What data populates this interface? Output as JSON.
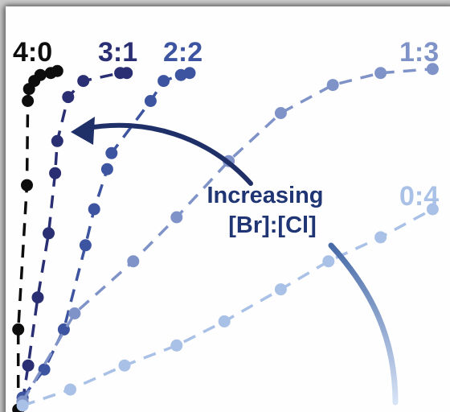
{
  "chart_data": {
    "type": "scatter",
    "title": "",
    "xlabel": "",
    "ylabel": "",
    "grid": false,
    "legend": "labels at line ends",
    "xlim": [
      0,
      100
    ],
    "ylim": [
      0,
      100
    ],
    "series": [
      {
        "name": "4:0",
        "color": "#0d0d0d",
        "points": [
          {
            "x": 0.5,
            "y": 0
          },
          {
            "x": 0.5,
            "y": 20
          },
          {
            "x": 2.5,
            "y": 56
          },
          {
            "x": 2.7,
            "y": 77
          },
          {
            "x": 3,
            "y": 80
          },
          {
            "x": 4.2,
            "y": 82
          },
          {
            "x": 5.6,
            "y": 83.5
          },
          {
            "x": 8,
            "y": 84
          },
          {
            "x": 9.5,
            "y": 84.5
          }
        ]
      },
      {
        "name": "3:1",
        "color": "#2a2e73",
        "points": [
          {
            "x": 1.5,
            "y": 2
          },
          {
            "x": 2.8,
            "y": 11
          },
          {
            "x": 5,
            "y": 28
          },
          {
            "x": 7.5,
            "y": 44
          },
          {
            "x": 9,
            "y": 59
          },
          {
            "x": 9.5,
            "y": 67
          },
          {
            "x": 12,
            "y": 78
          },
          {
            "x": 15.5,
            "y": 82
          },
          {
            "x": 24,
            "y": 84
          },
          {
            "x": 25.5,
            "y": 84
          }
        ]
      },
      {
        "name": "2:2",
        "color": "#3d54a0",
        "points": [
          {
            "x": 1.5,
            "y": 3
          },
          {
            "x": 6.5,
            "y": 10
          },
          {
            "x": 11,
            "y": 20
          },
          {
            "x": 16,
            "y": 41
          },
          {
            "x": 18,
            "y": 50
          },
          {
            "x": 21,
            "y": 60
          },
          {
            "x": 22,
            "y": 64
          },
          {
            "x": 31,
            "y": 77
          },
          {
            "x": 34,
            "y": 82
          },
          {
            "x": 38,
            "y": 83.5
          },
          {
            "x": 40,
            "y": 84
          }
        ]
      },
      {
        "name": "1:3",
        "color": "#7f93c8",
        "points": [
          {
            "x": 1.5,
            "y": 2
          },
          {
            "x": 13.5,
            "y": 24
          },
          {
            "x": 27,
            "y": 37
          },
          {
            "x": 37,
            "y": 48
          },
          {
            "x": 49,
            "y": 62
          },
          {
            "x": 61,
            "y": 74
          },
          {
            "x": 73,
            "y": 81
          },
          {
            "x": 84,
            "y": 84
          },
          {
            "x": 96,
            "y": 85
          }
        ]
      },
      {
        "name": "0:4",
        "color": "#a9c1e6",
        "points": [
          {
            "x": 1.5,
            "y": 1
          },
          {
            "x": 12.5,
            "y": 5
          },
          {
            "x": 25,
            "y": 11
          },
          {
            "x": 37,
            "y": 16
          },
          {
            "x": 48,
            "y": 22
          },
          {
            "x": 61,
            "y": 30
          },
          {
            "x": 72,
            "y": 37
          },
          {
            "x": 84,
            "y": 43
          },
          {
            "x": 96,
            "y": 50
          }
        ]
      }
    ],
    "annotations": [
      {
        "text_lines": [
          "Increasing",
          "[Br]:[Cl]"
        ]
      }
    ],
    "colors": {
      "annotation_text": "#203674",
      "arrow_dark": "#1f2f68",
      "arc_light": "#d7e3f6"
    }
  }
}
